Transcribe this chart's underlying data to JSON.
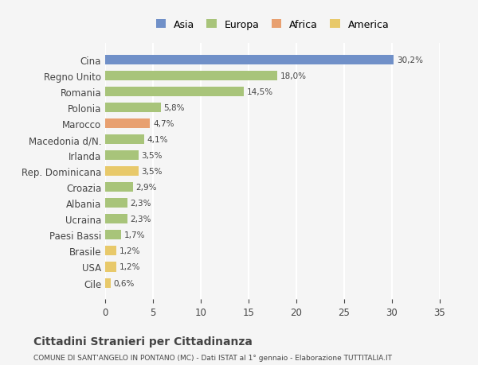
{
  "categories": [
    "Cile",
    "USA",
    "Brasile",
    "Paesi Bassi",
    "Ucraina",
    "Albania",
    "Croazia",
    "Rep. Dominicana",
    "Irlanda",
    "Macedonia d/N.",
    "Marocco",
    "Polonia",
    "Romania",
    "Regno Unito",
    "Cina"
  ],
  "values": [
    0.6,
    1.2,
    1.2,
    1.7,
    2.3,
    2.3,
    2.9,
    3.5,
    3.5,
    4.1,
    4.7,
    5.8,
    14.5,
    18.0,
    30.2
  ],
  "labels": [
    "0,6%",
    "1,2%",
    "1,2%",
    "1,7%",
    "2,3%",
    "2,3%",
    "2,9%",
    "3,5%",
    "3,5%",
    "4,1%",
    "4,7%",
    "5,8%",
    "14,5%",
    "18,0%",
    "30,2%"
  ],
  "colors": [
    "#e8c96a",
    "#e8c96a",
    "#e8c96a",
    "#a8c47a",
    "#a8c47a",
    "#a8c47a",
    "#a8c47a",
    "#e8c96a",
    "#a8c47a",
    "#a8c47a",
    "#e8a070",
    "#a8c47a",
    "#a8c47a",
    "#a8c47a",
    "#7090c8"
  ],
  "legend_labels": [
    "Asia",
    "Europa",
    "Africa",
    "America"
  ],
  "legend_colors": [
    "#7090c8",
    "#a8c47a",
    "#e8a070",
    "#e8c96a"
  ],
  "title": "Cittadini Stranieri per Cittadinanza",
  "subtitle": "COMUNE DI SANT'ANGELO IN PONTANO (MC) - Dati ISTAT al 1° gennaio - Elaborazione TUTTITALIA.IT",
  "xlim": [
    0,
    35
  ],
  "xticks": [
    0,
    5,
    10,
    15,
    20,
    25,
    30,
    35
  ],
  "bar_height": 0.6,
  "background_color": "#f5f5f5",
  "grid_color": "#ffffff",
  "text_color": "#444444"
}
